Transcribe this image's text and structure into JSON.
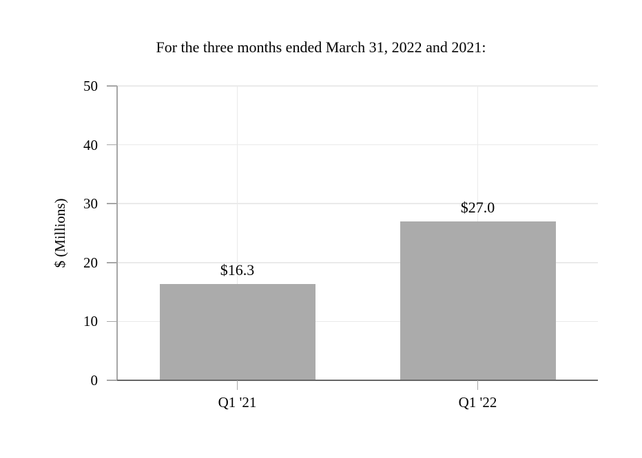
{
  "chart_data": {
    "type": "bar",
    "title": "For the three months ended March 31, 2022 and 2021:",
    "xlabel": "",
    "ylabel": "$ (Millions)",
    "categories": [
      "Q1 '21",
      "Q1 '22"
    ],
    "values": [
      16.3,
      27.0
    ],
    "data_labels": [
      "$16.3",
      "$27.0"
    ],
    "ylim": [
      0,
      50
    ],
    "yticks": [
      0,
      10,
      20,
      30,
      40,
      50
    ],
    "grid": "horizontal gridlines at each y tick plus vertical gridline at each category center",
    "legend": "none",
    "colors": {
      "bar_fill": "#ABABAB",
      "gridline": "#EAEAEA",
      "axis_line": "#A6A6A6",
      "bottom_axis_line": "#666666",
      "tick_mark": "#A6A6A6",
      "text": "#000000",
      "background": "#FFFFFF"
    }
  }
}
